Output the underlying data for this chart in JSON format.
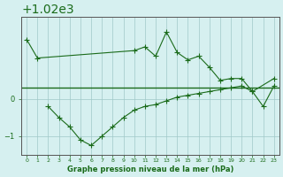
{
  "x": [
    0,
    1,
    2,
    3,
    4,
    5,
    6,
    7,
    8,
    9,
    10,
    11,
    12,
    13,
    14,
    15,
    16,
    17,
    18,
    19,
    20,
    21,
    22,
    23
  ],
  "line1": [
    1021.6,
    1021.1,
    null,
    null,
    null,
    null,
    null,
    null,
    null,
    null,
    1021.3,
    1021.4,
    1021.15,
    1021.8,
    1021.25,
    1021.05,
    1021.15,
    1020.85,
    1020.5,
    1020.55,
    1020.55,
    1020.2,
    null,
    1020.55
  ],
  "line2": [
    null,
    null,
    1019.8,
    1019.5,
    1019.25,
    1018.9,
    1018.75,
    1019.0,
    1019.25,
    1019.5,
    1019.7,
    1019.8,
    1019.85,
    1019.95,
    1020.05,
    1020.1,
    1020.15,
    1020.2,
    1020.25,
    1020.3,
    1020.35,
    1020.2,
    1019.8,
    1020.35
  ],
  "hline_y": 1020.3,
  "ylim_min": 1018.5,
  "ylim_max": 1022.2,
  "yticks": [
    1019,
    1020
  ],
  "xticks": [
    0,
    1,
    2,
    3,
    4,
    5,
    6,
    7,
    8,
    9,
    10,
    11,
    12,
    13,
    14,
    15,
    16,
    17,
    18,
    19,
    20,
    21,
    22,
    23
  ],
  "xlabel": "Graphe pression niveau de la mer (hPa)",
  "line_color": "#1a6b1a",
  "bg_color": "#d6f0f0",
  "grid_color": "#a0c8c8",
  "title": ""
}
